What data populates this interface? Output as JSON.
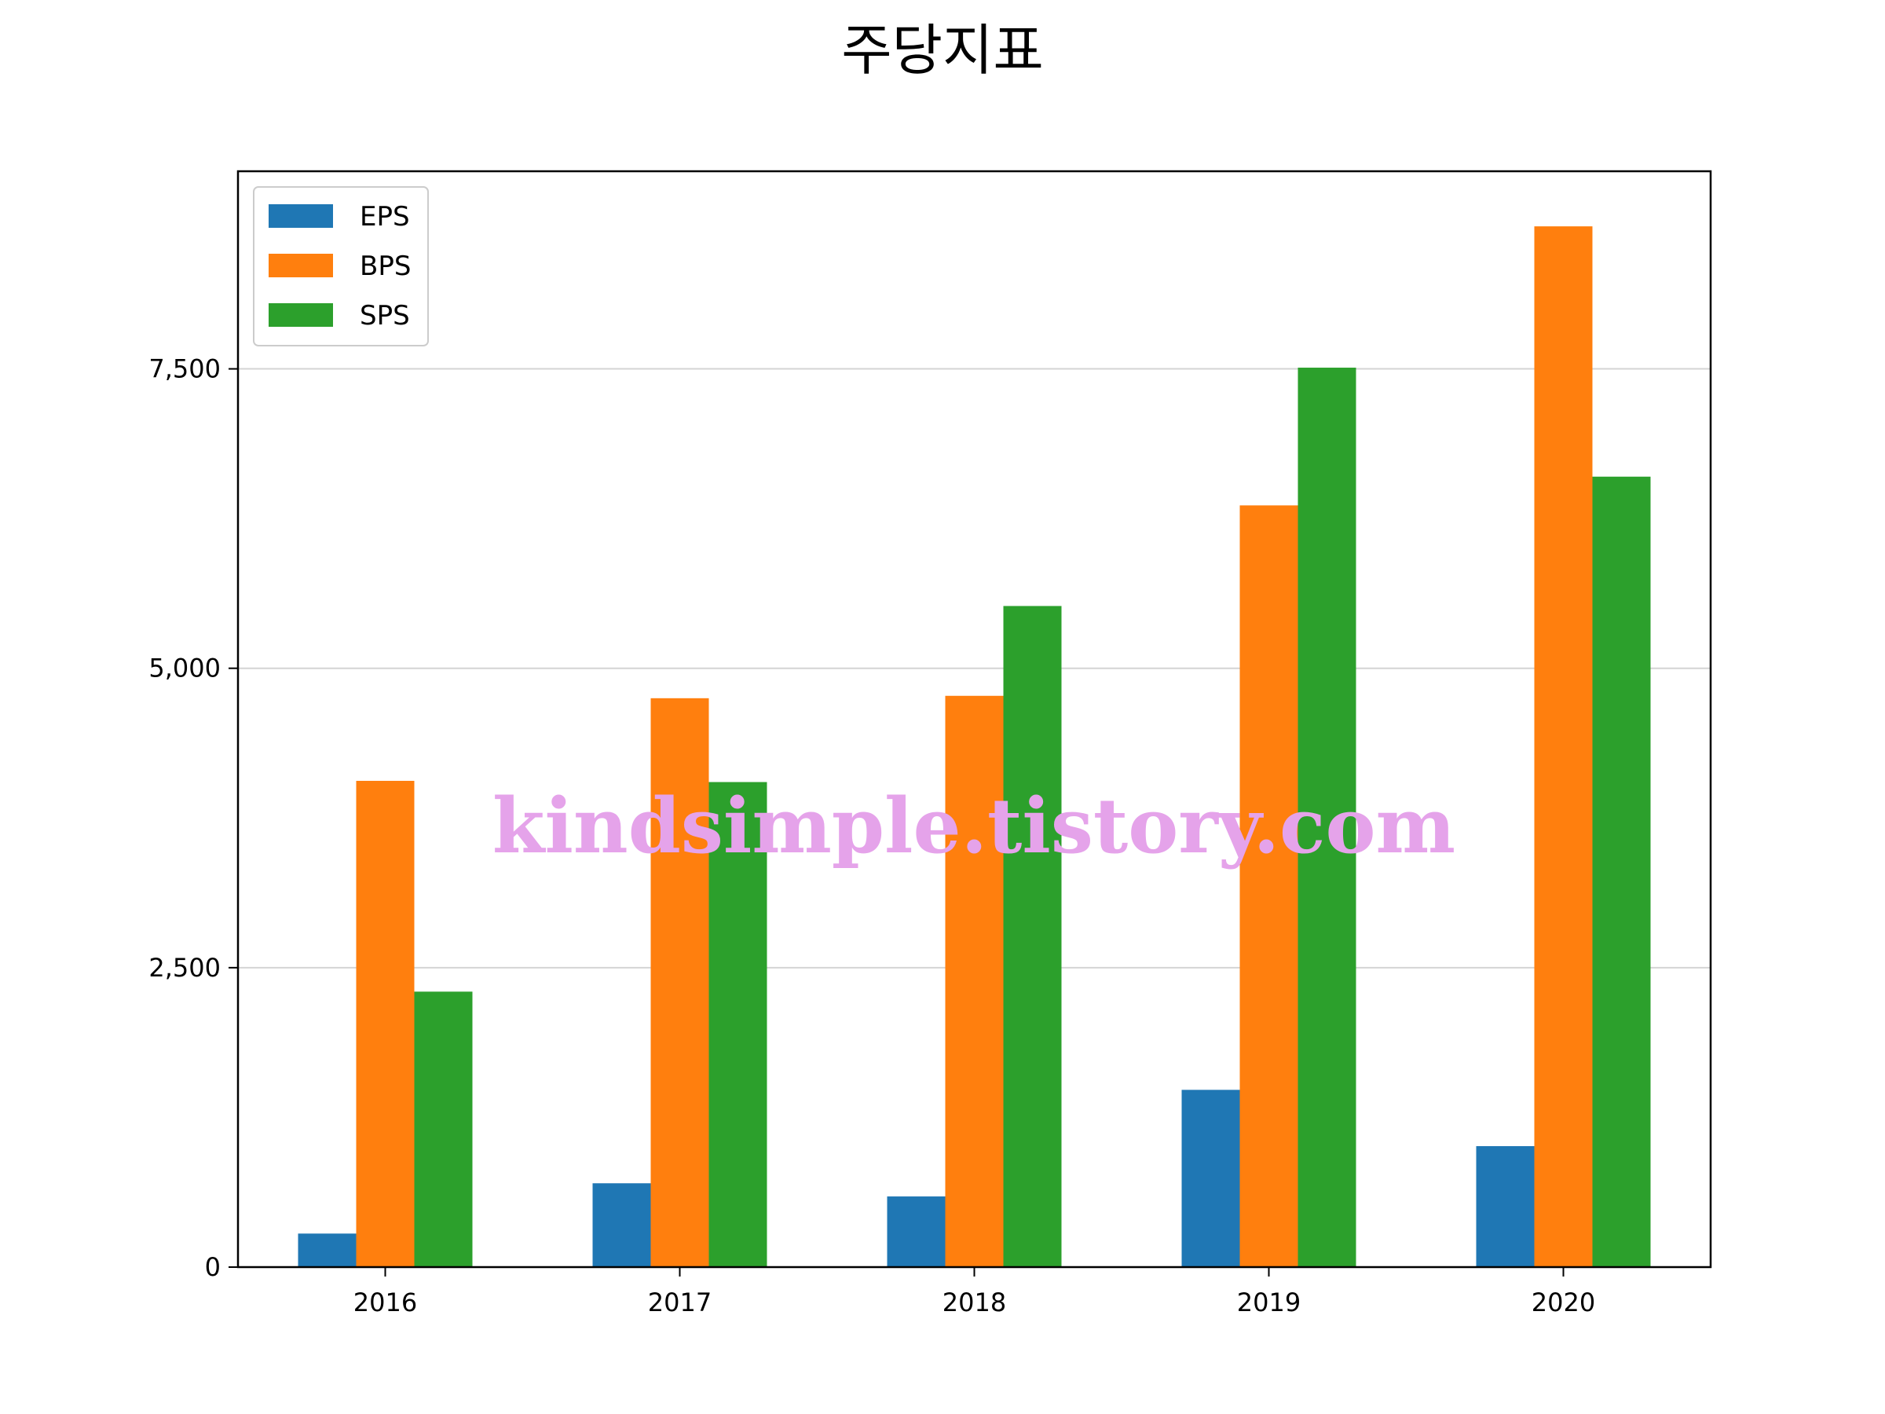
{
  "chart_data": {
    "type": "bar",
    "title": "주당지표",
    "xlabel": "",
    "ylabel": "",
    "categories": [
      "2016",
      "2017",
      "2018",
      "2019",
      "2020"
    ],
    "series": [
      {
        "name": "EPS",
        "color": "#1f77b4",
        "values": [
          280,
          700,
          590,
          1480,
          1010
        ]
      },
      {
        "name": "BPS",
        "color": "#ff7f0e",
        "values": [
          4060,
          4750,
          4770,
          6360,
          8690
        ]
      },
      {
        "name": "SPS",
        "color": "#2ca02c",
        "values": [
          2300,
          4050,
          5520,
          7510,
          6600
        ]
      }
    ],
    "ylim": [
      0,
      9150
    ],
    "yticks": [
      0,
      2500,
      5000,
      7500
    ],
    "ytick_labels": [
      "0",
      "2,500",
      "5,000",
      "7,500"
    ],
    "grid": "horizontal",
    "legend_position": "top-left"
  },
  "watermark": "kindsimple.tistory.com"
}
